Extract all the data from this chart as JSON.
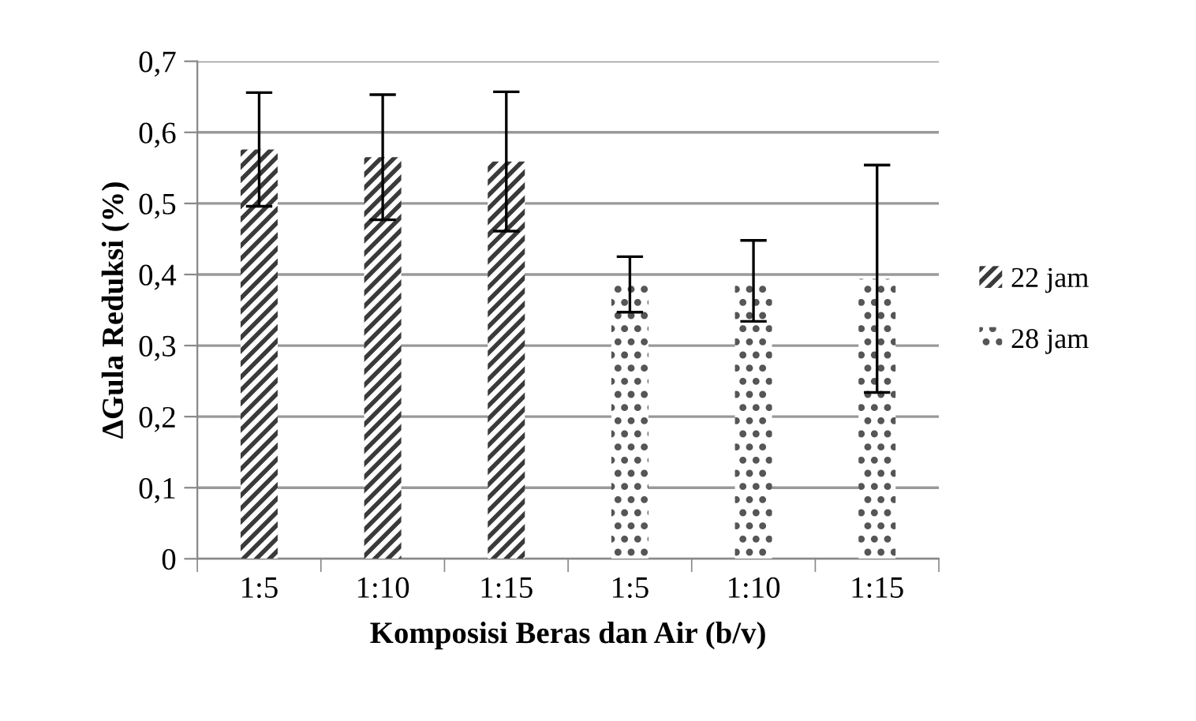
{
  "chart_data": {
    "type": "bar",
    "xlabel": "Komposisi Beras dan Air (b/v)",
    "ylabel": "ΔGula Reduksi (%)",
    "categories": [
      "1:5",
      "1:10",
      "1:15",
      "1:5",
      "1:10",
      "1:15"
    ],
    "series": [
      {
        "name": "22 jam",
        "color": "#3a3a3a",
        "values": [
          0.576,
          0.565,
          0.559,
          null,
          null,
          null
        ],
        "errors": [
          0.08,
          0.088,
          0.098,
          null,
          null,
          null
        ]
      },
      {
        "name": "28 jam",
        "color": "#555555",
        "values": [
          null,
          null,
          null,
          0.386,
          0.391,
          0.394
        ],
        "errors": [
          null,
          null,
          null,
          0.039,
          0.057,
          0.16
        ]
      }
    ],
    "ylim": [
      0,
      0.7
    ],
    "yticks": [
      {
        "value": 0,
        "label": "0"
      },
      {
        "value": 0.1,
        "label": "0,1"
      },
      {
        "value": 0.2,
        "label": "0,2"
      },
      {
        "value": 0.3,
        "label": "0,3"
      },
      {
        "value": 0.4,
        "label": "0,4"
      },
      {
        "value": 0.5,
        "label": "0,5"
      },
      {
        "value": 0.6,
        "label": "0,6"
      },
      {
        "value": 0.7,
        "label": "0,7"
      }
    ],
    "grid": "y",
    "legend": "right"
  }
}
